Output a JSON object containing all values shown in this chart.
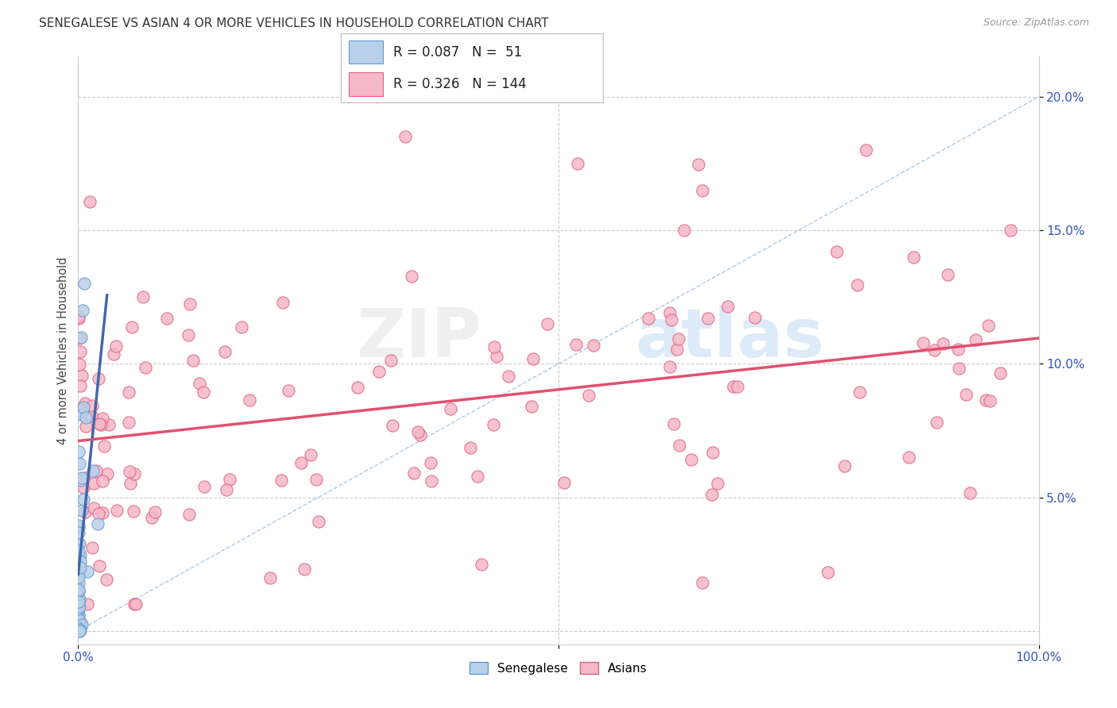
{
  "title": "SENEGALESE VS ASIAN 4 OR MORE VEHICLES IN HOUSEHOLD CORRELATION CHART",
  "source": "Source: ZipAtlas.com",
  "ylabel": "4 or more Vehicles in Household",
  "color_senegalese_fill": "#b8d0ea",
  "color_senegalese_edge": "#6699cc",
  "color_asians_fill": "#f5b8c8",
  "color_asians_edge": "#e06080",
  "color_line_senegalese": "#4466aa",
  "color_line_asians": "#e05070",
  "color_diag": "#99bbdd",
  "background_color": "#ffffff",
  "watermark_zip": "ZIP",
  "watermark_atlas": "atlas",
  "xlim": [
    0,
    1.0
  ],
  "ylim": [
    -0.005,
    0.215
  ],
  "yticks": [
    0.05,
    0.1,
    0.15,
    0.2
  ],
  "ytick_labels": [
    "5.0%",
    "10.0%",
    "15.0%",
    "20.0%"
  ],
  "xtick_left": "0.0%",
  "xtick_right": "100.0%",
  "legend_line1": "R = 0.087",
  "legend_n1": "N =  51",
  "legend_line2": "R = 0.326",
  "legend_n2": "N = 144",
  "title_fontsize": 11,
  "tick_color": "#3355bb"
}
